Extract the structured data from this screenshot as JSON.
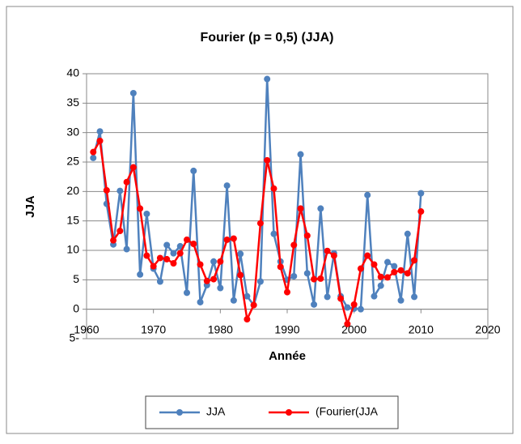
{
  "chart_data": {
    "type": "line",
    "title": "Fourier (p  = 0,5) (JJA)",
    "x_label": "Année",
    "y_label": "JJA",
    "x": [
      1961,
      1962,
      1963,
      1964,
      1965,
      1966,
      1967,
      1968,
      1969,
      1970,
      1971,
      1972,
      1973,
      1974,
      1975,
      1976,
      1977,
      1978,
      1979,
      1980,
      1981,
      1982,
      1983,
      1984,
      1985,
      1986,
      1987,
      1988,
      1989,
      1990,
      1991,
      1992,
      1993,
      1994,
      1995,
      1996,
      1997,
      1998,
      1999,
      2000,
      2001,
      2002,
      2003,
      2004,
      2005,
      2006,
      2007,
      2008,
      2009,
      2010
    ],
    "series": [
      {
        "name": "JJA",
        "color": "#4f81bd",
        "values": [
          25.7,
          30.2,
          17.9,
          11.0,
          20.1,
          10.2,
          36.7,
          5.9,
          16.2,
          6.9,
          4.7,
          10.9,
          9.5,
          10.7,
          2.8,
          23.5,
          1.2,
          4.1,
          8.1,
          3.6,
          21.0,
          1.5,
          9.4,
          2.2,
          0.7,
          4.7,
          39.1,
          12.8,
          8.1,
          5.0,
          5.6,
          26.3,
          6.1,
          0.8,
          17.1,
          2.1,
          9.5,
          2.2,
          0.3,
          0.1,
          0.0,
          19.4,
          2.2,
          4.0,
          8.0,
          7.3,
          1.5,
          12.8,
          2.1,
          19.7
        ]
      },
      {
        "name": "(Fourier(JJA",
        "color": "#ff0000",
        "values": [
          26.7,
          28.6,
          20.2,
          11.7,
          13.3,
          21.6,
          24.1,
          17.1,
          9.1,
          7.3,
          8.7,
          8.5,
          7.8,
          9.5,
          11.8,
          11.1,
          7.6,
          4.8,
          5.1,
          8.1,
          11.8,
          12.0,
          5.8,
          -1.7,
          0.7,
          14.6,
          25.3,
          20.5,
          7.2,
          2.9,
          10.9,
          17.1,
          12.5,
          5.1,
          5.2,
          9.9,
          9.1,
          1.8,
          -2.5,
          0.8,
          6.9,
          9.1,
          7.6,
          5.5,
          5.4,
          6.3,
          6.6,
          6.1,
          8.3,
          16.6
        ]
      }
    ],
    "xlim": [
      1960,
      2020
    ],
    "xticks": [
      1960,
      1970,
      1980,
      1990,
      2000,
      2010,
      2020
    ],
    "ylim": [
      -5,
      40
    ],
    "yticks": [
      {
        "value": -5,
        "label": "5-"
      },
      0,
      5,
      10,
      15,
      20,
      25,
      30,
      35,
      40
    ],
    "grid": true,
    "legend": "bottom"
  }
}
